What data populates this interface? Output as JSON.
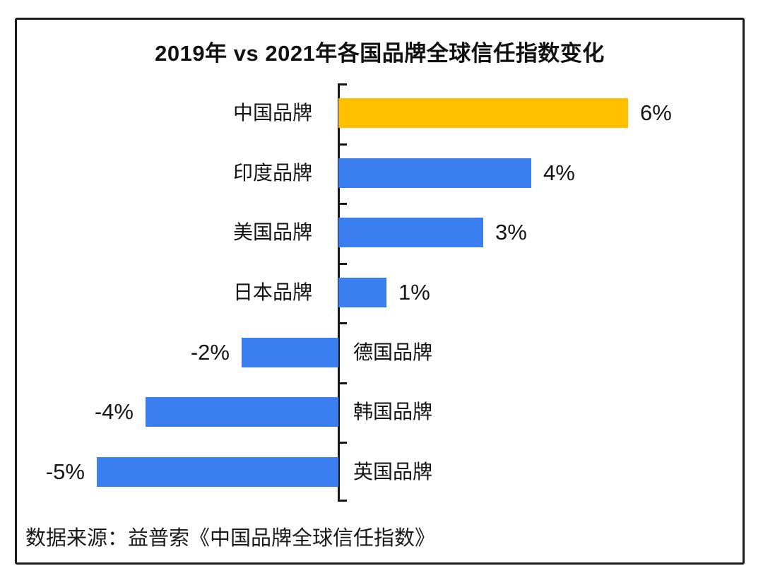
{
  "chart_data": {
    "type": "bar",
    "orientation": "horizontal",
    "title": "2019年 vs 2021年各国品牌全球信任指数变化",
    "source_note": "数据来源：益普索《中国品牌全球信任指数》",
    "categories": [
      "中国品牌",
      "印度品牌",
      "美国品牌",
      "日本品牌",
      "德国品牌",
      "韩国品牌",
      "英国品牌"
    ],
    "category_slugs": [
      "china",
      "india",
      "usa",
      "japan",
      "germany",
      "south-korea",
      "uk"
    ],
    "values": [
      6,
      4,
      3,
      1,
      -2,
      -4,
      -5
    ],
    "value_labels": [
      "6%",
      "4%",
      "3%",
      "1%",
      "-2%",
      "-4%",
      "-5%"
    ],
    "unit": "%",
    "xlim": [
      -6.5,
      6.5
    ],
    "grid": false,
    "legend": "none",
    "baseline_value": 0,
    "colors": {
      "highlight_bar": "#FFC000",
      "default_bar": "#3B7EF0",
      "axis": "#161616",
      "text": "#141414"
    },
    "bar_colors": [
      "#FFC000",
      "#3B7EF0",
      "#3B7EF0",
      "#3B7EF0",
      "#3B7EF0",
      "#3B7EF0",
      "#3B7EF0"
    ]
  }
}
